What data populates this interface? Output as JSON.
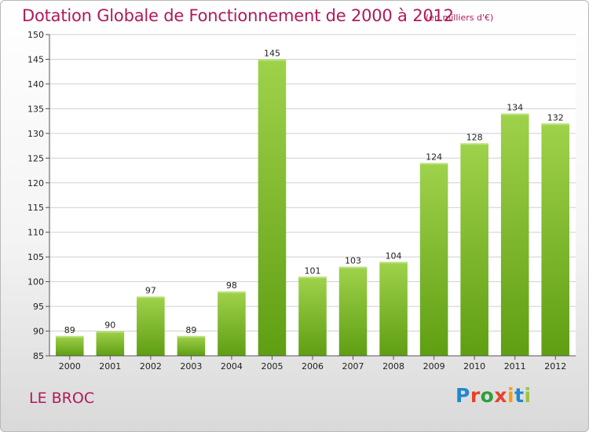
{
  "header": {
    "title": "Dotation Globale de Fonctionnement de 2000 à 2012",
    "unit": "(en milliers d'€)"
  },
  "footer": {
    "place": "LE BROC",
    "logo": {
      "text": "Proxiti",
      "colors": [
        "#1f88cf",
        "#e8412a",
        "#2a9f3a",
        "#e8412a",
        "#f2a01b",
        "#1f88cf",
        "#9bc53d"
      ]
    }
  },
  "colors": {
    "title": "#b0195a",
    "bar_light": "#9fd24b",
    "bar_dark": "#5f9e12",
    "grid": "#cfcfcf",
    "plot_bg": "#ffffff"
  },
  "chart_data": {
    "type": "bar",
    "title": "Dotation Globale de Fonctionnement de 2000 à 2012",
    "subtitle": "(en milliers d'€)",
    "categories": [
      "2000",
      "2001",
      "2002",
      "2003",
      "2004",
      "2005",
      "2006",
      "2007",
      "2008",
      "2009",
      "2010",
      "2011",
      "2012"
    ],
    "values": [
      89,
      90,
      97,
      89,
      98,
      145,
      101,
      103,
      104,
      124,
      128,
      134,
      132
    ],
    "ylim": [
      85,
      150
    ],
    "yticks": [
      85,
      90,
      95,
      100,
      105,
      110,
      115,
      120,
      125,
      130,
      135,
      140,
      145,
      150
    ],
    "grid": "horizontal",
    "data_labels": true
  }
}
